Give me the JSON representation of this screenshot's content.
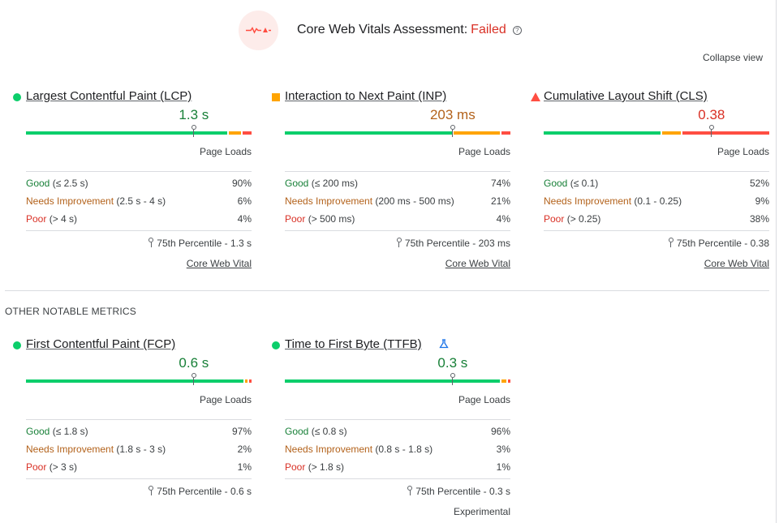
{
  "assessment": {
    "label": "Core Web Vitals Assessment:",
    "verdict": "Failed",
    "help_glyph": "?",
    "icon": "failed-pulse-icon",
    "verdict_color": "#d93025"
  },
  "collapse_label": "Collapse view",
  "other_heading": "OTHER NOTABLE METRICS",
  "colors": {
    "good": "#0cce6b",
    "needs_improvement": "#ffa400",
    "poor": "#ff4e42"
  },
  "metrics": [
    {
      "id": "lcp",
      "name": "Largest Contentful Paint (LCP)",
      "status": "good",
      "value": "1.3 s",
      "marker_fraction": 0.744,
      "distribution": {
        "good": 90,
        "needs_improvement": 6,
        "poor": 4
      },
      "page_loads": "Page Loads",
      "rows": [
        {
          "label": "Good",
          "range": "(≤ 2.5 s)",
          "pct": "90%"
        },
        {
          "label": "Needs Improvement",
          "range": "(2.5 s - 4 s)",
          "pct": "6%"
        },
        {
          "label": "Poor",
          "range": "(> 4 s)",
          "pct": "4%"
        }
      ],
      "percentile": "75th Percentile - 1.3 s",
      "footer": "Core Web Vital"
    },
    {
      "id": "inp",
      "name": "Interaction to Next Paint (INP)",
      "status": "ni",
      "value": "203 ms",
      "marker_fraction": 0.744,
      "distribution": {
        "good": 74,
        "needs_improvement": 21,
        "poor": 4
      },
      "page_loads": "Page Loads",
      "rows": [
        {
          "label": "Good",
          "range": "(≤ 200 ms)",
          "pct": "74%"
        },
        {
          "label": "Needs Improvement",
          "range": "(200 ms - 500 ms)",
          "pct": "21%"
        },
        {
          "label": "Poor",
          "range": "(> 500 ms)",
          "pct": "4%"
        }
      ],
      "percentile": "75th Percentile - 203 ms",
      "footer": "Core Web Vital"
    },
    {
      "id": "cls",
      "name": "Cumulative Layout Shift (CLS)",
      "status": "poor",
      "value": "0.38",
      "marker_fraction": 0.744,
      "distribution": {
        "good": 52,
        "needs_improvement": 9,
        "poor": 38
      },
      "page_loads": "Page Loads",
      "rows": [
        {
          "label": "Good",
          "range": "(≤ 0.1)",
          "pct": "52%"
        },
        {
          "label": "Needs Improvement",
          "range": "(0.1 - 0.25)",
          "pct": "9%"
        },
        {
          "label": "Poor",
          "range": "(> 0.25)",
          "pct": "38%"
        }
      ],
      "percentile": "75th Percentile - 0.38",
      "footer": "Core Web Vital"
    },
    {
      "id": "fcp",
      "name": "First Contentful Paint (FCP)",
      "status": "good",
      "value": "0.6 s",
      "marker_fraction": 0.744,
      "distribution": {
        "good": 97,
        "needs_improvement": 2,
        "poor": 1
      },
      "page_loads": "Page Loads",
      "rows": [
        {
          "label": "Good",
          "range": "(≤ 1.8 s)",
          "pct": "97%"
        },
        {
          "label": "Needs Improvement",
          "range": "(1.8 s - 3 s)",
          "pct": "2%"
        },
        {
          "label": "Poor",
          "range": "(> 3 s)",
          "pct": "1%"
        }
      ],
      "percentile": "75th Percentile - 0.6 s",
      "footer": ""
    },
    {
      "id": "ttfb",
      "name": "Time to First Byte (TTFB)",
      "status": "good",
      "value": "0.3 s",
      "marker_fraction": 0.744,
      "distribution": {
        "good": 96,
        "needs_improvement": 3,
        "poor": 1
      },
      "page_loads": "Page Loads",
      "rows": [
        {
          "label": "Good",
          "range": "(≤ 0.8 s)",
          "pct": "96%"
        },
        {
          "label": "Needs Improvement",
          "range": "(0.8 s - 1.8 s)",
          "pct": "3%"
        },
        {
          "label": "Poor",
          "range": "(> 1.8 s)",
          "pct": "1%"
        }
      ],
      "percentile": "75th Percentile - 0.3 s",
      "footer": "Experimental",
      "experimental_icon": "flask-icon"
    }
  ]
}
